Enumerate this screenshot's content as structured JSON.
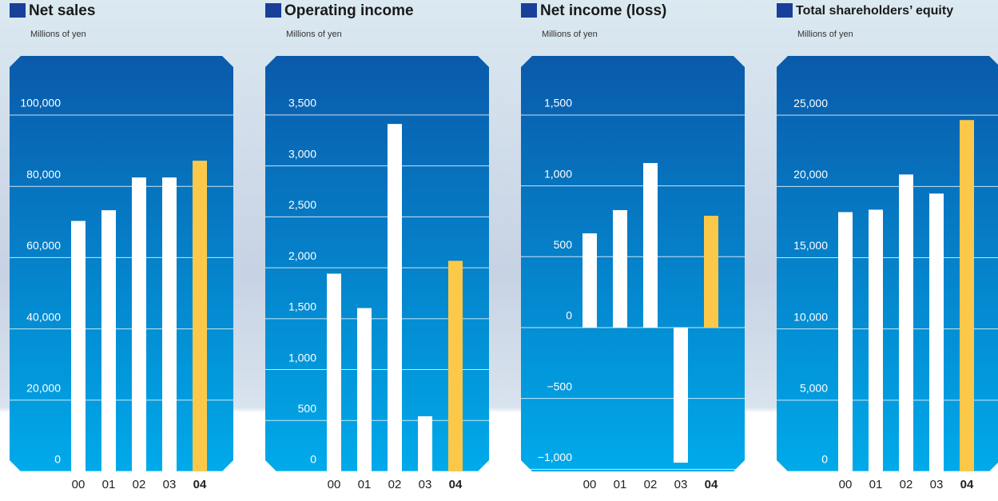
{
  "chart_data": [
    {
      "type": "bar",
      "title": "Net sales",
      "subtitle": "Millions of yen",
      "categories": [
        "00",
        "01",
        "02",
        "03",
        "04"
      ],
      "values": [
        70300,
        73300,
        82500,
        82500,
        87200
      ],
      "color": "#ffffff",
      "highlight_color": "#fcc84a",
      "ylim": [
        0,
        116600
      ],
      "yticks": [
        0,
        {
          "value": 20000,
          "label": "20,000"
        },
        {
          "value": 40000,
          "label": "40,000"
        },
        {
          "value": 60000,
          "label": "60,000"
        },
        {
          "value": 80000,
          "label": "80,000"
        },
        {
          "value": 100000,
          "label": "100,000"
        }
      ],
      "grid": true
    },
    {
      "type": "bar",
      "title": "Operating income",
      "subtitle": "Millions of yen",
      "categories": [
        "00",
        "01",
        "02",
        "03",
        "04"
      ],
      "values": [
        1942,
        1604,
        3412,
        542,
        2068
      ],
      "color": "#ffffff",
      "highlight_color": "#fcc84a",
      "ylim": [
        0,
        4080
      ],
      "yticks": [
        0,
        500,
        {
          "value": 1000,
          "label": "1,000"
        },
        {
          "value": 1500,
          "label": "1,500"
        },
        {
          "value": 2000,
          "label": "2,000"
        },
        {
          "value": 2500,
          "label": "2,500"
        },
        {
          "value": 3000,
          "label": "3,000"
        },
        {
          "value": 3500,
          "label": "3,500"
        }
      ],
      "grid": true
    },
    {
      "type": "bar",
      "title": "Net income (loss)",
      "subtitle": "Millions of yen",
      "categories": [
        "00",
        "01",
        "02",
        "03",
        "04"
      ],
      "values": [
        665,
        829,
        1161,
        -953,
        789
      ],
      "color": "#ffffff",
      "highlight_color": "#fcc84a",
      "ylim": [
        -1015,
        1917
      ],
      "yticks": [
        {
          "value": -1000,
          "label": "−1,000"
        },
        {
          "value": -500,
          "label": "−500"
        },
        0,
        500,
        {
          "value": 1000,
          "label": "1,000"
        },
        {
          "value": 1500,
          "label": "1,500"
        }
      ],
      "grid": true
    },
    {
      "type": "bar",
      "title": "Total shareholders’ equity",
      "subtitle": "Millions of yen",
      "categories": [
        "00",
        "01",
        "02",
        "03",
        "04"
      ],
      "values": [
        18200,
        18370,
        20840,
        19500,
        24660
      ],
      "color": "#ffffff",
      "highlight_color": "#fcc84a",
      "ylim": [
        0,
        29160
      ],
      "yticks": [
        0,
        {
          "value": 5000,
          "label": "5,000"
        },
        {
          "value": 10000,
          "label": "10,000"
        },
        {
          "value": 15000,
          "label": "15,000"
        },
        {
          "value": 20000,
          "label": "20,000"
        },
        {
          "value": 25000,
          "label": "25,000"
        }
      ],
      "grid": true
    }
  ]
}
